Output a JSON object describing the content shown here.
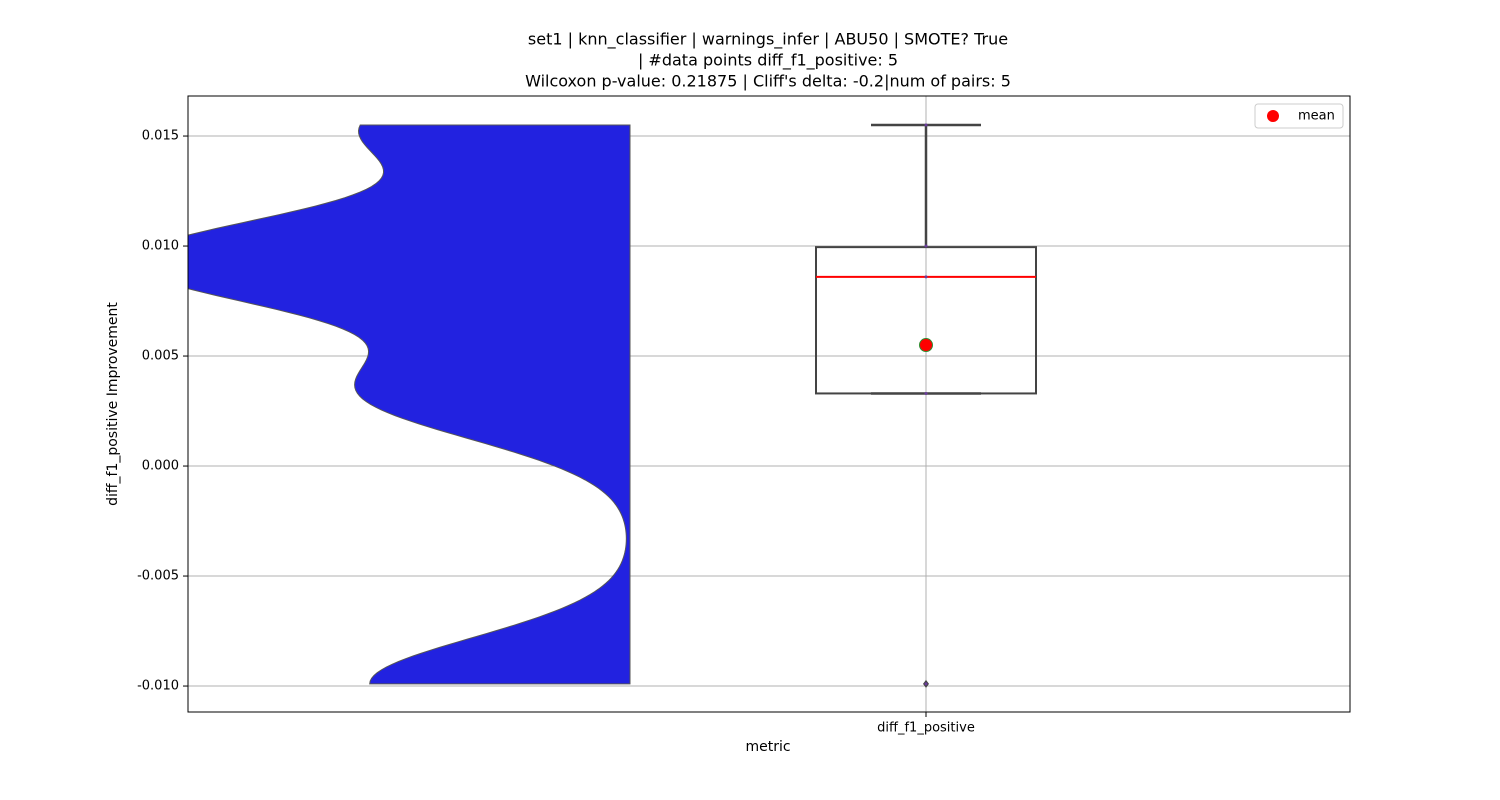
{
  "chart_data": {
    "type": "box",
    "title": [
      "set1 | knn_classifier | warnings_infer | ABU50 | SMOTE? True",
      "| #data points diff_f1_positive: 5",
      "Wilcoxon p-value: 0.21875 | Cliff's delta: -0.2|num of pairs: 5"
    ],
    "xlabel": "metric",
    "ylabel": "diff_f1_positive Improvement",
    "categories": [
      "diff_f1_positive"
    ],
    "values": [
      -0.0099,
      0.0033,
      0.0086,
      0.01,
      0.0155
    ],
    "box": {
      "whisker_low": 0.0033,
      "q1": 0.0033,
      "median": 0.0086,
      "q3": 0.00995,
      "whisker_high": 0.0155,
      "mean": 0.0055,
      "outliers": [
        -0.0099
      ]
    },
    "legend": {
      "label": "mean",
      "position": "upper right"
    },
    "violin_color": "#2222e0",
    "box_color": "#444444",
    "median_color": "#ff0000",
    "mean_color": "#ff0000",
    "mean_edge_color": "#2e8b2e",
    "ylim": [
      -0.01118,
      0.01682
    ],
    "yticks": [
      {
        "value": -0.01,
        "label": "-0.010"
      },
      {
        "value": -0.005,
        "label": "-0.005"
      },
      {
        "value": 0,
        "label": "0.000"
      },
      {
        "value": 0.005,
        "label": "0.005"
      },
      {
        "value": 0.01,
        "label": "0.010"
      },
      {
        "value": 0.015,
        "label": "0.015"
      }
    ],
    "grid": true
  }
}
